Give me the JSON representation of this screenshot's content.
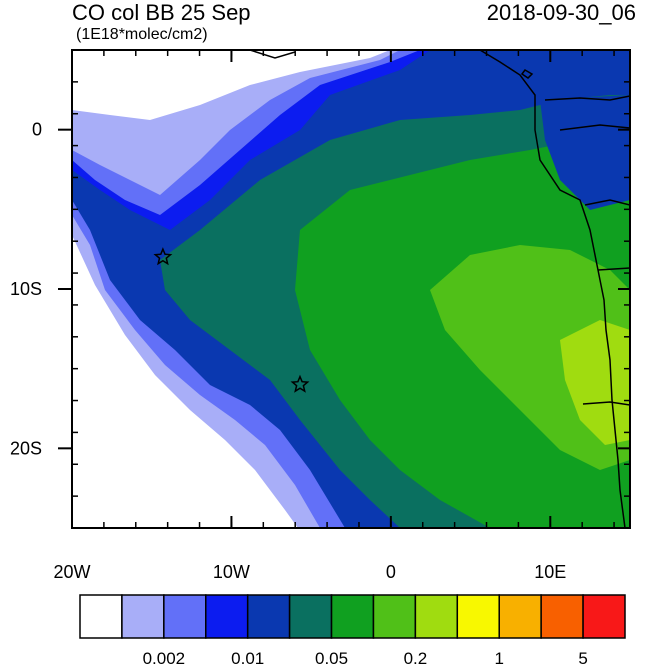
{
  "title": {
    "variable": "CO col BB 25 Sep",
    "units": "(1E18*molec/cm2)",
    "time": "2018-09-30_06"
  },
  "map": {
    "lon_range": [
      -20,
      15
    ],
    "lat_range": [
      -25,
      5
    ],
    "x_ticks": [
      {
        "value": -20,
        "label": "20W"
      },
      {
        "value": -10,
        "label": "10W"
      },
      {
        "value": 0,
        "label": "0"
      },
      {
        "value": 10,
        "label": "10E"
      }
    ],
    "y_ticks": [
      {
        "value": 0,
        "label": "0"
      },
      {
        "value": -10,
        "label": "10S"
      },
      {
        "value": -20,
        "label": "20S"
      }
    ],
    "markers": [
      {
        "name": "star",
        "lon": -14.3,
        "lat": -8.0
      },
      {
        "name": "star",
        "lon": -5.7,
        "lat": -16.0
      }
    ]
  },
  "colorbar": {
    "colors": [
      "#ffffff",
      "#a8aef8",
      "#6270f8",
      "#0c1cf0",
      "#0a38b0",
      "#0a7060",
      "#10a020",
      "#50c018",
      "#a0dc10",
      "#f8f800",
      "#f8b000",
      "#f86000",
      "#f81818"
    ],
    "labels": [
      {
        "after_box": 2,
        "text": "0.002"
      },
      {
        "after_box": 4,
        "text": "0.01"
      },
      {
        "after_box": 6,
        "text": "0.05"
      },
      {
        "after_box": 8,
        "text": "0.2"
      },
      {
        "after_box": 10,
        "text": "1"
      },
      {
        "after_box": 12,
        "text": "5"
      }
    ]
  }
}
